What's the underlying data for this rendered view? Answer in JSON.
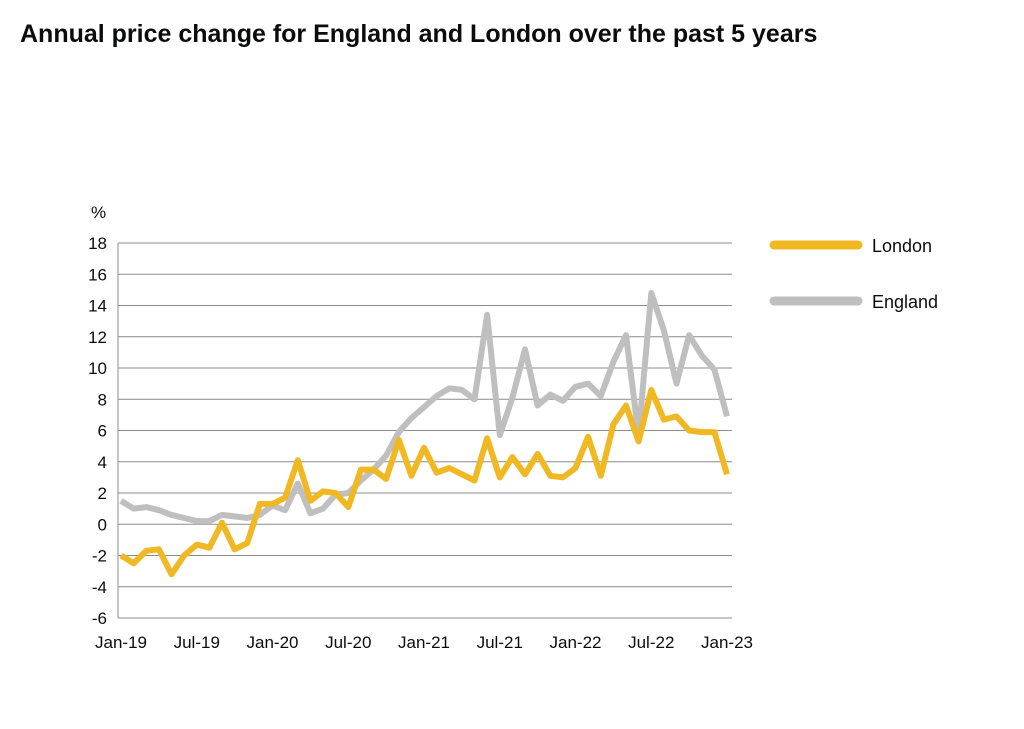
{
  "chart_data": {
    "type": "line",
    "title": "Annual price change for England and London over the past 5 years",
    "ylabel": "%",
    "xlabel": "",
    "ylim": [
      -6,
      18
    ],
    "yticks": [
      18,
      16,
      14,
      12,
      10,
      8,
      6,
      4,
      2,
      0,
      -2,
      -4,
      -6
    ],
    "xtick_labels": [
      "Jan-19",
      "Jul-19",
      "Jan-20",
      "Jul-20",
      "Jan-21",
      "Jul-21",
      "Jan-22",
      "Jul-22",
      "Jan-23"
    ],
    "grid": true,
    "legend_position": "right",
    "x": [
      "Jan-19",
      "Feb-19",
      "Mar-19",
      "Apr-19",
      "May-19",
      "Jun-19",
      "Jul-19",
      "Aug-19",
      "Sep-19",
      "Oct-19",
      "Nov-19",
      "Dec-19",
      "Jan-20",
      "Feb-20",
      "Mar-20",
      "Apr-20",
      "May-20",
      "Jun-20",
      "Jul-20",
      "Aug-20",
      "Sep-20",
      "Oct-20",
      "Nov-20",
      "Dec-20",
      "Jan-21",
      "Feb-21",
      "Mar-21",
      "Apr-21",
      "May-21",
      "Jun-21",
      "Jul-21",
      "Aug-21",
      "Sep-21",
      "Oct-21",
      "Nov-21",
      "Dec-21",
      "Jan-22",
      "Feb-22",
      "Mar-22",
      "Apr-22",
      "May-22",
      "Jun-22",
      "Jul-22",
      "Aug-22",
      "Sep-22",
      "Oct-22",
      "Nov-22",
      "Dec-22",
      "Jan-23"
    ],
    "series": [
      {
        "name": "London",
        "color": "#f0b823",
        "values": [
          -2.0,
          -2.5,
          -1.7,
          -1.6,
          -3.2,
          -2.0,
          -1.3,
          -1.5,
          0.1,
          -1.6,
          -1.2,
          1.3,
          1.3,
          1.7,
          4.1,
          1.5,
          2.1,
          2.0,
          1.1,
          3.5,
          3.5,
          2.9,
          5.4,
          3.1,
          4.9,
          3.3,
          3.6,
          3.2,
          2.8,
          5.5,
          3.0,
          4.3,
          3.2,
          4.5,
          3.1,
          3.0,
          3.6,
          5.6,
          3.1,
          6.4,
          7.6,
          5.3,
          8.6,
          6.7,
          6.9,
          6.0,
          5.9,
          5.9,
          3.2
        ]
      },
      {
        "name": "England",
        "color": "#bfbfbf",
        "values": [
          1.5,
          1.0,
          1.1,
          0.9,
          0.6,
          0.4,
          0.2,
          0.2,
          0.6,
          0.5,
          0.4,
          0.6,
          1.2,
          0.9,
          2.6,
          0.7,
          1.0,
          1.9,
          2.0,
          2.8,
          3.5,
          4.4,
          5.9,
          6.8,
          7.5,
          8.2,
          8.7,
          8.6,
          8.0,
          13.4,
          5.7,
          8.1,
          11.2,
          7.6,
          8.3,
          7.9,
          8.8,
          9.0,
          8.2,
          10.4,
          12.1,
          5.7,
          14.8,
          12.4,
          9.0,
          12.1,
          10.8,
          9.9,
          6.9
        ]
      }
    ]
  }
}
